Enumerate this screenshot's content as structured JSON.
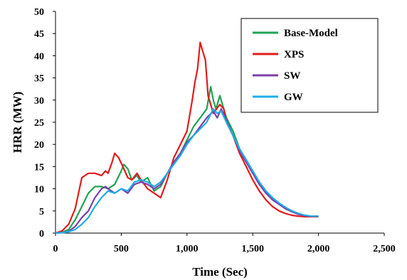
{
  "chart_data": {
    "type": "line",
    "title": "",
    "xlabel": "Time (Sec)",
    "ylabel": "HRR (MW)",
    "xlim": [
      0,
      2500
    ],
    "ylim": [
      0,
      50
    ],
    "xticks": [
      0,
      500,
      1000,
      1500,
      2000,
      2500
    ],
    "yticks": [
      0,
      5,
      10,
      15,
      20,
      25,
      30,
      35,
      40,
      45,
      50
    ],
    "xtick_labels": [
      "0",
      "500",
      "1,000",
      "1,500",
      "2,000",
      "2,500"
    ],
    "ytick_labels": [
      "0",
      "5",
      "10",
      "15",
      "20",
      "25",
      "30",
      "35",
      "40",
      "45",
      "50"
    ],
    "grid": false,
    "legend_position": "top-right",
    "series": [
      {
        "name": "Base-Model",
        "color": "#1fa354",
        "points": [
          [
            0,
            0
          ],
          [
            50,
            0.2
          ],
          [
            100,
            0.8
          ],
          [
            150,
            3
          ],
          [
            200,
            6
          ],
          [
            250,
            9
          ],
          [
            300,
            10.5
          ],
          [
            350,
            10.5
          ],
          [
            400,
            10
          ],
          [
            450,
            11
          ],
          [
            500,
            14
          ],
          [
            520,
            15.5
          ],
          [
            550,
            14.5
          ],
          [
            580,
            12
          ],
          [
            620,
            13
          ],
          [
            650,
            11.5
          ],
          [
            700,
            12.5
          ],
          [
            750,
            9.5
          ],
          [
            800,
            10.5
          ],
          [
            850,
            13.5
          ],
          [
            900,
            16
          ],
          [
            950,
            18
          ],
          [
            1000,
            21
          ],
          [
            1050,
            24
          ],
          [
            1100,
            26
          ],
          [
            1150,
            28
          ],
          [
            1180,
            33
          ],
          [
            1200,
            30
          ],
          [
            1220,
            28
          ],
          [
            1250,
            31
          ],
          [
            1280,
            28
          ],
          [
            1300,
            26
          ],
          [
            1350,
            23
          ],
          [
            1400,
            19
          ],
          [
            1450,
            16.5
          ],
          [
            1500,
            14
          ],
          [
            1550,
            11.5
          ],
          [
            1600,
            9.5
          ],
          [
            1650,
            8
          ],
          [
            1700,
            6.5
          ],
          [
            1750,
            5.5
          ],
          [
            1800,
            4.8
          ],
          [
            1850,
            4.3
          ],
          [
            1900,
            4
          ],
          [
            1950,
            3.8
          ],
          [
            2000,
            3.8
          ]
        ]
      },
      {
        "name": "XPS",
        "color": "#e31b1b",
        "points": [
          [
            0,
            0
          ],
          [
            50,
            0.5
          ],
          [
            100,
            2
          ],
          [
            150,
            5.5
          ],
          [
            200,
            12.5
          ],
          [
            250,
            13.5
          ],
          [
            300,
            13.5
          ],
          [
            350,
            13
          ],
          [
            380,
            14
          ],
          [
            400,
            13.5
          ],
          [
            430,
            16
          ],
          [
            450,
            18
          ],
          [
            480,
            17
          ],
          [
            520,
            14.5
          ],
          [
            550,
            12.5
          ],
          [
            580,
            12
          ],
          [
            620,
            13.5
          ],
          [
            650,
            12
          ],
          [
            700,
            10
          ],
          [
            750,
            9
          ],
          [
            800,
            8
          ],
          [
            850,
            12
          ],
          [
            900,
            17
          ],
          [
            950,
            20
          ],
          [
            1000,
            23
          ],
          [
            1040,
            30
          ],
          [
            1060,
            34
          ],
          [
            1080,
            37
          ],
          [
            1100,
            43
          ],
          [
            1120,
            41
          ],
          [
            1140,
            39
          ],
          [
            1160,
            31
          ],
          [
            1180,
            29
          ],
          [
            1200,
            27
          ],
          [
            1250,
            29
          ],
          [
            1280,
            28
          ],
          [
            1300,
            25
          ],
          [
            1350,
            22
          ],
          [
            1400,
            18
          ],
          [
            1450,
            15
          ],
          [
            1500,
            12
          ],
          [
            1550,
            9.5
          ],
          [
            1600,
            7.5
          ],
          [
            1650,
            6
          ],
          [
            1700,
            5
          ],
          [
            1750,
            4.4
          ],
          [
            1800,
            4
          ],
          [
            1850,
            3.8
          ],
          [
            1900,
            3.7
          ],
          [
            1950,
            3.7
          ],
          [
            2000,
            3.7
          ]
        ]
      },
      {
        "name": "SW",
        "color": "#7b3fa8",
        "points": [
          [
            0,
            0
          ],
          [
            50,
            0.1
          ],
          [
            100,
            0.4
          ],
          [
            150,
            1.5
          ],
          [
            200,
            3.5
          ],
          [
            250,
            5
          ],
          [
            300,
            8
          ],
          [
            350,
            10
          ],
          [
            380,
            10.5
          ],
          [
            400,
            10
          ],
          [
            450,
            9
          ],
          [
            500,
            10
          ],
          [
            550,
            9
          ],
          [
            600,
            11
          ],
          [
            650,
            11.5
          ],
          [
            700,
            11
          ],
          [
            750,
            10
          ],
          [
            800,
            11
          ],
          [
            850,
            13.5
          ],
          [
            900,
            16
          ],
          [
            950,
            18
          ],
          [
            1000,
            20.5
          ],
          [
            1050,
            22
          ],
          [
            1100,
            24
          ],
          [
            1150,
            26
          ],
          [
            1200,
            27.5
          ],
          [
            1230,
            26
          ],
          [
            1260,
            28
          ],
          [
            1300,
            25.5
          ],
          [
            1350,
            22
          ],
          [
            1400,
            18.5
          ],
          [
            1450,
            16
          ],
          [
            1500,
            13.5
          ],
          [
            1550,
            11
          ],
          [
            1600,
            9
          ],
          [
            1650,
            7.5
          ],
          [
            1700,
            6.5
          ],
          [
            1750,
            5.5
          ],
          [
            1800,
            4.8
          ],
          [
            1850,
            4.2
          ],
          [
            1900,
            3.9
          ],
          [
            1950,
            3.8
          ],
          [
            2000,
            3.8
          ]
        ]
      },
      {
        "name": "GW",
        "color": "#20aee6",
        "points": [
          [
            0,
            0
          ],
          [
            50,
            0.1
          ],
          [
            100,
            0.3
          ],
          [
            150,
            0.8
          ],
          [
            200,
            2
          ],
          [
            250,
            3.5
          ],
          [
            300,
            6
          ],
          [
            350,
            8
          ],
          [
            400,
            9.5
          ],
          [
            450,
            9
          ],
          [
            500,
            10
          ],
          [
            550,
            9.5
          ],
          [
            600,
            11.5
          ],
          [
            650,
            12
          ],
          [
            700,
            11.5
          ],
          [
            750,
            10.5
          ],
          [
            800,
            11.5
          ],
          [
            850,
            13.5
          ],
          [
            900,
            15.5
          ],
          [
            950,
            17.5
          ],
          [
            1000,
            20
          ],
          [
            1050,
            22
          ],
          [
            1100,
            23.5
          ],
          [
            1150,
            25
          ],
          [
            1200,
            28
          ],
          [
            1230,
            27
          ],
          [
            1260,
            27.5
          ],
          [
            1300,
            25
          ],
          [
            1350,
            22
          ],
          [
            1400,
            19
          ],
          [
            1450,
            16.5
          ],
          [
            1500,
            14
          ],
          [
            1550,
            11.5
          ],
          [
            1600,
            9.5
          ],
          [
            1650,
            8
          ],
          [
            1700,
            6.8
          ],
          [
            1750,
            5.8
          ],
          [
            1800,
            5
          ],
          [
            1850,
            4.4
          ],
          [
            1900,
            4
          ],
          [
            1950,
            3.8
          ],
          [
            2000,
            3.8
          ]
        ]
      }
    ]
  }
}
